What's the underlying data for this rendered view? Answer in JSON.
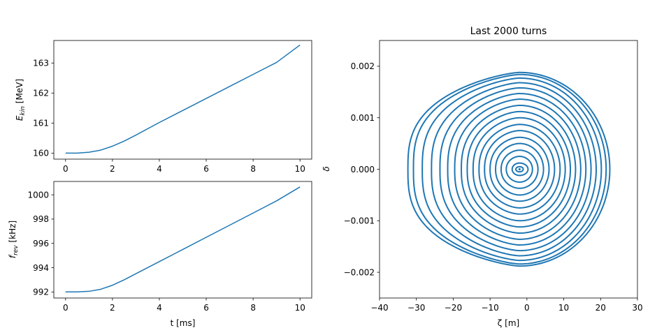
{
  "chart_data": [
    {
      "type": "line",
      "title": "",
      "xlabel": "",
      "ylabel": "E_kin [MeV]",
      "ylabel_main": "E",
      "ylabel_sub": "kin",
      "ylabel_unit": " [MeV]",
      "xlim": [
        -0.5,
        10.5
      ],
      "ylim": [
        159.8,
        163.75
      ],
      "xticks": [
        0,
        2,
        4,
        6,
        8,
        10
      ],
      "yticks": [
        160,
        161,
        162,
        163
      ],
      "grid": false,
      "color": "#1f77b4",
      "x": [
        0,
        0.5,
        1,
        1.5,
        2,
        2.5,
        3,
        4,
        5,
        6,
        7,
        8,
        9,
        10
      ],
      "y": [
        160.0,
        160.0,
        160.03,
        160.1,
        160.23,
        160.4,
        160.6,
        161.02,
        161.42,
        161.82,
        162.22,
        162.62,
        163.02,
        163.6
      ]
    },
    {
      "type": "line",
      "title": "",
      "xlabel": "t [ms]",
      "ylabel": "f_rev [kHz]",
      "ylabel_main": "f",
      "ylabel_sub": "rev",
      "ylabel_unit": " [kHz]",
      "xlim": [
        -0.5,
        10.5
      ],
      "ylim": [
        991.5,
        1001.1
      ],
      "xticks": [
        0,
        2,
        4,
        6,
        8,
        10
      ],
      "yticks": [
        992,
        994,
        996,
        998,
        1000
      ],
      "grid": false,
      "color": "#1f77b4",
      "x": [
        0,
        0.5,
        1,
        1.5,
        2,
        2.5,
        3,
        4,
        5,
        6,
        7,
        8,
        9,
        10
      ],
      "y": [
        992.0,
        992.0,
        992.05,
        992.22,
        992.55,
        993.0,
        993.5,
        994.5,
        995.5,
        996.5,
        997.5,
        998.5,
        999.5,
        1000.65
      ]
    },
    {
      "type": "scatter",
      "title": "Last 2000 turns",
      "xlabel": "ζ [m]",
      "ylabel": "δ",
      "xlim": [
        -40,
        30
      ],
      "ylim": [
        -0.0025,
        0.0025
      ],
      "xticks": [
        -40,
        -30,
        -20,
        -10,
        0,
        10,
        20,
        30
      ],
      "yticks": [
        -0.002,
        -0.001,
        0.0,
        0.001,
        0.002
      ],
      "ytick_labels": [
        "−0.002",
        "−0.001",
        "0.000",
        "0.001",
        "0.002"
      ],
      "xtick_labels": [
        "−40",
        "−30",
        "−20",
        "−10",
        "0",
        "10",
        "20",
        "30"
      ],
      "grid": false,
      "color": "#1f77b4",
      "center": [
        -2,
        0
      ],
      "orbits": [
        {
          "zeta_min": -3.0,
          "zeta_max": -1.0,
          "delta_max": 5e-05
        },
        {
          "zeta_min": -4.0,
          "zeta_max": 0.3,
          "delta_max": 0.00012
        },
        {
          "zeta_min": -5.6,
          "zeta_max": 1.5,
          "delta_max": 0.00025
        },
        {
          "zeta_min": -7.0,
          "zeta_max": 3.0,
          "delta_max": 0.00037
        },
        {
          "zeta_min": -8.5,
          "zeta_max": 4.5,
          "delta_max": 0.0005
        },
        {
          "zeta_min": -10.0,
          "zeta_max": 6.0,
          "delta_max": 0.00062
        },
        {
          "zeta_min": -11.5,
          "zeta_max": 7.5,
          "delta_max": 0.00075
        },
        {
          "zeta_min": -13.0,
          "zeta_max": 9.0,
          "delta_max": 0.00087
        },
        {
          "zeta_min": -14.6,
          "zeta_max": 10.4,
          "delta_max": 0.001
        },
        {
          "zeta_min": -16.2,
          "zeta_max": 11.8,
          "delta_max": 0.00112
        },
        {
          "zeta_min": -17.8,
          "zeta_max": 13.2,
          "delta_max": 0.00124
        },
        {
          "zeta_min": -19.6,
          "zeta_max": 14.6,
          "delta_max": 0.00136
        },
        {
          "zeta_min": -21.5,
          "zeta_max": 16.0,
          "delta_max": 0.00147
        },
        {
          "zeta_min": -23.6,
          "zeta_max": 17.4,
          "delta_max": 0.00158
        },
        {
          "zeta_min": -25.9,
          "zeta_max": 18.8,
          "delta_max": 0.00168
        },
        {
          "zeta_min": -28.4,
          "zeta_max": 20.2,
          "delta_max": 0.00177
        },
        {
          "zeta_min": -30.8,
          "zeta_max": 21.5,
          "delta_max": 0.00184
        },
        {
          "zeta_min": -32.3,
          "zeta_max": 22.5,
          "delta_max": 0.00188
        }
      ]
    }
  ]
}
